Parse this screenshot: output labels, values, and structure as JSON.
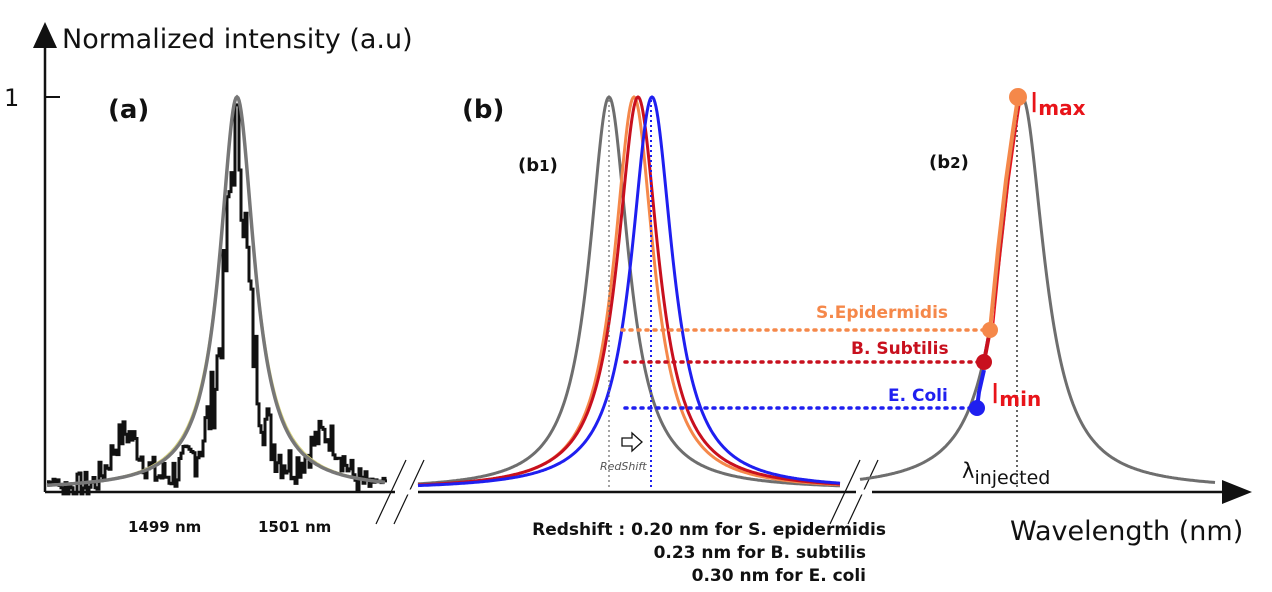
{
  "chart_data": {
    "type": "line",
    "ylabel": "Normalized intensity (a.u)",
    "xlabel": "Wavelength (nm)",
    "y_tick": "1",
    "panels": {
      "a": {
        "label": "(a)",
        "x_ticks": [
          "1499 nm",
          "1501 nm"
        ]
      },
      "b": {
        "label": "(b)",
        "b1_label_main": "(b",
        "b1_label_sub": "1",
        "b1_label_close": ")",
        "b2_label_main": "(b",
        "b2_label_sub": "2",
        "b2_label_close": ")",
        "redshift_arrow_label": "RedShift",
        "lambda_label": "λ",
        "lambda_sub": "injected",
        "imax_main": "I",
        "imax_sub": "max",
        "imin_main": "I",
        "imin_sub": "min"
      }
    },
    "series": [
      {
        "name": "S.Epidermidis",
        "color": "#f5884a",
        "shift_nm": 0.2
      },
      {
        "name": "B. Subtilis",
        "color": "#c8101e",
        "shift_nm": 0.23
      },
      {
        "name": "E. Coli",
        "color": "#1f1ff0",
        "shift_nm": 0.3
      }
    ],
    "reference_color": "#6e6e6e",
    "redshift_notes": [
      "Redshift : 0.20 nm for S. epidermidis",
      "0.23 nm for B. subtilis",
      "0.30 nm for E. coli"
    ]
  }
}
